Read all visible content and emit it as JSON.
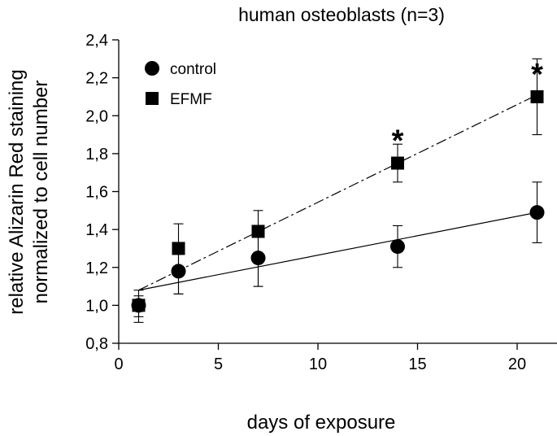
{
  "chart_data": {
    "type": "scatter",
    "title": "human osteoblasts (n=3)",
    "xlabel": "days of exposure",
    "ylabel": [
      "relative Alizarin Red staining",
      "normalized to cell number"
    ],
    "xlim": [
      0,
      22
    ],
    "ylim": [
      0.8,
      2.4
    ],
    "xticks": [
      0,
      5,
      10,
      15,
      20
    ],
    "xtick_labels": [
      "0",
      "5",
      "10",
      "15",
      "20"
    ],
    "yticks": [
      0.8,
      1.0,
      1.2,
      1.4,
      1.6,
      1.8,
      2.0,
      2.2,
      2.4
    ],
    "ytick_labels": [
      "0,8",
      "1,0",
      "1,2",
      "1,4",
      "1,6",
      "1,8",
      "2,0",
      "2,2",
      "2,4"
    ],
    "grid": false,
    "legend_position": "top-left",
    "series": [
      {
        "name": "control",
        "marker": "circle",
        "line_style": "solid",
        "x": [
          1,
          3,
          7,
          14,
          21
        ],
        "y": [
          1.0,
          1.18,
          1.25,
          1.31,
          1.49
        ],
        "err_upper": [
          0.08,
          0.12,
          0.15,
          0.11,
          0.16
        ],
        "err_lower": [
          0.06,
          0.12,
          0.15,
          0.11,
          0.16
        ],
        "fit": {
          "x": [
            1,
            21
          ],
          "y": [
            1.08,
            1.49
          ]
        }
      },
      {
        "name": "EFMF",
        "marker": "square",
        "line_style": "dashed",
        "x": [
          1,
          3,
          7,
          14,
          21
        ],
        "y": [
          1.0,
          1.3,
          1.39,
          1.75,
          2.1
        ],
        "err_upper": [
          0.05,
          0.13,
          0.11,
          0.1,
          0.2
        ],
        "err_lower": [
          0.09,
          0.24,
          0.29,
          0.1,
          0.2
        ],
        "fit": {
          "x": [
            1,
            21
          ],
          "y": [
            1.08,
            2.11
          ]
        }
      }
    ],
    "annotations": [
      {
        "text": "*",
        "x": 14,
        "y": 1.75
      },
      {
        "text": "*",
        "x": 21,
        "y": 2.1
      }
    ]
  }
}
